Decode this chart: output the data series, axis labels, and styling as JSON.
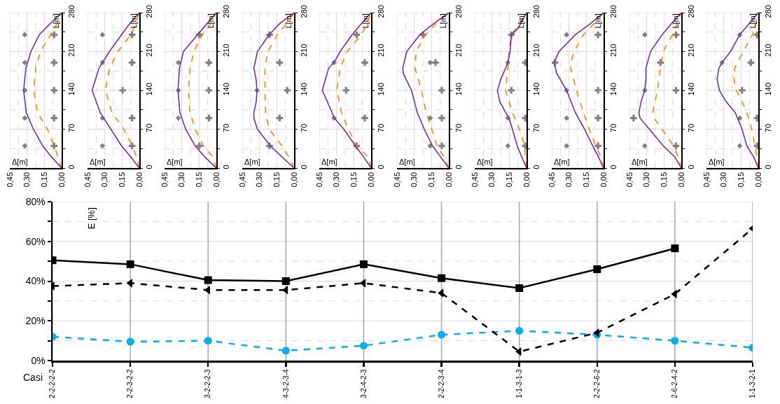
{
  "chart_data": [
    {
      "type": "line",
      "xlabel": "Δ[m]",
      "ylabel": "L[m]",
      "xlim": [
        0.45,
        0
      ],
      "ylim": [
        0,
        280
      ],
      "xticks": [
        {
          "value": 0.45,
          "label": "0,45"
        },
        {
          "value": 0.375,
          "label": null
        },
        {
          "value": 0.3,
          "label": "0,30"
        },
        {
          "value": 0.225,
          "label": null
        },
        {
          "value": 0.15,
          "label": "0,15"
        },
        {
          "value": 0.075,
          "label": null
        },
        {
          "value": 0,
          "label": "0,00"
        }
      ],
      "yticks": [
        0,
        {
          "value": 35,
          "label": null
        },
        70,
        {
          "value": 105,
          "label": null
        },
        140,
        {
          "value": 175,
          "label": null
        },
        210,
        {
          "value": 245,
          "label": null
        },
        280
      ],
      "grid": true,
      "series": [
        {
          "type": "line",
          "color": "#7030a0",
          "line_style": "solid",
          "marker": "none",
          "x": [
            0,
            0.088,
            0.164,
            0.245,
            0.307,
            0.33,
            0.31,
            0.266,
            0.194,
            0.1,
            0
          ],
          "values": [
            0,
            20,
            40,
            70,
            100,
            140,
            180,
            210,
            240,
            260,
            280
          ]
        },
        {
          "type": "line",
          "color": "#ff8000",
          "line_style": "dashed",
          "marker": "none",
          "x": [
            0,
            0.03,
            0.067,
            0.123,
            0.21,
            0.24,
            0.225,
            0.184,
            0.096,
            0.04,
            0
          ],
          "values": [
            0,
            20,
            40,
            70,
            100,
            140,
            180,
            210,
            240,
            260,
            280
          ]
        },
        {
          "type": "scatter",
          "color": "#808080",
          "marker": "diamond",
          "x": [
            0.32,
            0.32,
            0.32,
            0.32,
            0.32
          ],
          "values": [
            40,
            90,
            140,
            190,
            240
          ]
        },
        {
          "type": "scatter",
          "color": "#808080",
          "marker": "cross",
          "x": [
            0.065,
            0.065,
            0.065,
            0.065,
            0.065
          ],
          "values": [
            40,
            90,
            140,
            190,
            240
          ]
        }
      ]
    },
    {
      "type": "line",
      "xlabel": "Δ[m]",
      "ylabel": "L[m]",
      "xlim": [
        0.45,
        0
      ],
      "ylim": [
        0,
        280
      ],
      "xticks": [
        {
          "value": 0.45,
          "label": "0,45"
        },
        {
          "value": 0.375,
          "label": null
        },
        {
          "value": 0.3,
          "label": "0,30"
        },
        {
          "value": 0.225,
          "label": null
        },
        {
          "value": 0.15,
          "label": "0,15"
        },
        {
          "value": 0.075,
          "label": null
        },
        {
          "value": 0,
          "label": "0,00"
        }
      ],
      "yticks": [
        0,
        {
          "value": 35,
          "label": null
        },
        70,
        {
          "value": 105,
          "label": null
        },
        140,
        {
          "value": 175,
          "label": null
        },
        210,
        {
          "value": 245,
          "label": null
        },
        280
      ],
      "grid": true,
      "series": [
        {
          "type": "line",
          "color": "#7030a0",
          "line_style": "solid",
          "marker": "none",
          "x": [
            0,
            0.074,
            0.155,
            0.247,
            0.31,
            0.34,
            0.41,
            0.35,
            0.32,
            0.26,
            0.155,
            0.084,
            0
          ],
          "values": [
            0,
            20,
            40,
            70,
            90,
            100,
            140,
            180,
            190,
            210,
            240,
            260,
            280
          ]
        },
        {
          "type": "line",
          "color": "#ff8000",
          "line_style": "dashed",
          "marker": "none",
          "x": [
            0,
            0.023,
            0.063,
            0.135,
            0.237,
            0.295,
            0.258,
            0.186,
            0.074,
            0.033,
            0
          ],
          "values": [
            0,
            20,
            40,
            70,
            100,
            140,
            180,
            210,
            240,
            260,
            280
          ]
        },
        {
          "type": "scatter",
          "color": "#808080",
          "marker": "diamond",
          "x": [
            0.32,
            0.32,
            0.32,
            0.32
          ],
          "values": [
            40,
            90,
            190,
            240
          ]
        },
        {
          "type": "scatter",
          "color": "#808080",
          "marker": "cross",
          "x": [
            0.063,
            0.063,
            0.145,
            0.063,
            0.063
          ],
          "values": [
            40,
            90,
            140,
            190,
            240
          ]
        }
      ]
    },
    {
      "type": "line",
      "xlabel": "Δ[m]",
      "ylabel": "L[m]",
      "xlim": [
        0.45,
        0
      ],
      "ylim": [
        0,
        280
      ],
      "xticks": [
        {
          "value": 0.45,
          "label": "0,45"
        },
        {
          "value": 0.375,
          "label": null
        },
        {
          "value": 0.3,
          "label": "0,30"
        },
        {
          "value": 0.225,
          "label": null
        },
        {
          "value": 0.15,
          "label": "0,15"
        },
        {
          "value": 0.075,
          "label": null
        },
        {
          "value": 0,
          "label": "0,00"
        }
      ],
      "yticks": [
        0,
        {
          "value": 35,
          "label": null
        },
        70,
        {
          "value": 105,
          "label": null
        },
        140,
        {
          "value": 175,
          "label": null
        },
        210,
        {
          "value": 245,
          "label": null
        },
        280
      ],
      "grid": true,
      "series": [
        {
          "type": "line",
          "color": "#7030a0",
          "line_style": "solid",
          "marker": "none",
          "x": [
            0,
            0.1,
            0.184,
            0.266,
            0.317,
            0.333,
            0.32,
            0.286,
            0.164,
            0.082,
            0
          ],
          "values": [
            0,
            20,
            40,
            70,
            100,
            140,
            180,
            210,
            240,
            260,
            280
          ]
        },
        {
          "type": "line",
          "color": "#ff8000",
          "line_style": "dashed",
          "marker": "none",
          "x": [
            0,
            0.03,
            0.112,
            0.184,
            0.229,
            0.241,
            0.229,
            0.194,
            0.123,
            0.05,
            0
          ],
          "values": [
            0,
            20,
            40,
            70,
            100,
            140,
            180,
            210,
            240,
            260,
            280
          ]
        },
        {
          "type": "scatter",
          "color": "#808080",
          "marker": "diamond",
          "x": [
            0.33,
            0.33,
            0.33
          ],
          "values": [
            90,
            140,
            190
          ]
        },
        {
          "type": "scatter",
          "color": "#808080",
          "marker": "cross",
          "x": [
            0.147,
            0.065,
            0.065,
            0.065,
            0.147
          ],
          "values": [
            40,
            90,
            140,
            190,
            240
          ]
        }
      ]
    },
    {
      "type": "line",
      "xlabel": "Δ[m]",
      "ylabel": "L[m]",
      "xlim": [
        0.45,
        0
      ],
      "ylim": [
        0,
        280
      ],
      "xticks": [
        {
          "value": 0.45,
          "label": "0,45"
        },
        {
          "value": 0.375,
          "label": null
        },
        {
          "value": 0.3,
          "label": "0,30"
        },
        {
          "value": 0.225,
          "label": null
        },
        {
          "value": 0.15,
          "label": "0,15"
        },
        {
          "value": 0.075,
          "label": null
        },
        {
          "value": 0,
          "label": "0,00"
        }
      ],
      "yticks": [
        0,
        {
          "value": 35,
          "label": null
        },
        70,
        {
          "value": 105,
          "label": null
        },
        140,
        {
          "value": 175,
          "label": null
        },
        210,
        {
          "value": 245,
          "label": null
        },
        280
      ],
      "grid": true,
      "series": [
        {
          "type": "line",
          "color": "#7030a0",
          "line_style": "solid",
          "marker": "none",
          "x": [
            0,
            0.105,
            0.207,
            0.318,
            0.349,
            0.349,
            0.328,
            0.322,
            0.33,
            0.349,
            0.318,
            0.217,
            0.126,
            0
          ],
          "values": [
            0,
            20,
            40,
            70,
            90,
            100,
            120,
            140,
            160,
            180,
            210,
            240,
            260,
            280
          ]
        },
        {
          "type": "line",
          "color": "#ff8000",
          "line_style": "dashed",
          "marker": "none",
          "x": [
            0,
            0.045,
            0.105,
            0.217,
            0.247,
            0.253,
            0.253,
            0.227,
            0.146,
            0.065,
            0
          ],
          "values": [
            0,
            20,
            40,
            70,
            100,
            140,
            180,
            210,
            240,
            260,
            280
          ]
        },
        {
          "type": "scatter",
          "color": "#808080",
          "marker": "diamond",
          "x": [
            0.322
          ],
          "values": [
            140
          ]
        },
        {
          "type": "scatter",
          "color": "#808080",
          "marker": "cross",
          "x": [
            0.213,
            0.126,
            0.059,
            0.126,
            0.213
          ],
          "values": [
            40,
            90,
            140,
            190,
            240
          ]
        }
      ]
    },
    {
      "type": "line",
      "xlabel": "Δ[m]",
      "ylabel": "L[m]",
      "xlim": [
        0.45,
        0
      ],
      "ylim": [
        0,
        280
      ],
      "xticks": [
        {
          "value": 0.45,
          "label": "0,45"
        },
        {
          "value": 0.375,
          "label": null
        },
        {
          "value": 0.3,
          "label": "0,30"
        },
        {
          "value": 0.225,
          "label": null
        },
        {
          "value": 0.15,
          "label": "0,15"
        },
        {
          "value": 0.075,
          "label": null
        },
        {
          "value": 0,
          "label": "0,00"
        }
      ],
      "yticks": [
        0,
        {
          "value": 35,
          "label": null
        },
        70,
        {
          "value": 105,
          "label": null
        },
        140,
        {
          "value": 175,
          "label": null
        },
        210,
        {
          "value": 245,
          "label": null
        },
        280
      ],
      "grid": true,
      "series": [
        {
          "type": "line",
          "color": "#7030a0",
          "line_style": "solid",
          "marker": "none",
          "x": [
            0,
            0.065,
            0.136,
            0.237,
            0.318,
            0.339,
            0.424,
            0.369,
            0.322,
            0.268,
            0.166,
            0.085,
            0
          ],
          "values": [
            0,
            20,
            40,
            70,
            90,
            100,
            140,
            180,
            190,
            210,
            240,
            260,
            280
          ]
        },
        {
          "type": "line",
          "color": "#ff8000",
          "line_style": "dashed",
          "marker": "none",
          "x": [
            0,
            0.024,
            0.126,
            0.197,
            0.257,
            0.298,
            0.268,
            0.207,
            0.085,
            0.034,
            0
          ],
          "values": [
            0,
            20,
            40,
            70,
            100,
            140,
            180,
            210,
            240,
            260,
            280
          ]
        },
        {
          "type": "scatter",
          "color": "#808080",
          "marker": "diamond",
          "x": [
            0.322,
            0.322
          ],
          "values": [
            90,
            190
          ]
        },
        {
          "type": "scatter",
          "color": "#808080",
          "marker": "cross",
          "x": [
            0.126,
            0.055,
            0.217,
            0.055,
            0.126
          ],
          "values": [
            40,
            90,
            140,
            190,
            240
          ]
        }
      ]
    },
    {
      "type": "line",
      "xlabel": "Δ[m]",
      "ylabel": "L[m]",
      "xlim": [
        0.45,
        0
      ],
      "ylim": [
        0,
        280
      ],
      "xticks": [
        {
          "value": 0.45,
          "label": "0,45"
        },
        {
          "value": 0.375,
          "label": null
        },
        {
          "value": 0.3,
          "label": "0,30"
        },
        {
          "value": 0.225,
          "label": null
        },
        {
          "value": 0.15,
          "label": "0,15"
        },
        {
          "value": 0.075,
          "label": null
        },
        {
          "value": 0,
          "label": "0,00"
        }
      ],
      "yticks": [
        0,
        {
          "value": 35,
          "label": null
        },
        70,
        {
          "value": 105,
          "label": null
        },
        140,
        {
          "value": 175,
          "label": null
        },
        210,
        {
          "value": 245,
          "label": null
        },
        280
      ],
      "grid": true,
      "series": [
        {
          "type": "line",
          "color": "#7030a0",
          "line_style": "solid",
          "marker": "none",
          "x": [
            0,
            0.071,
            0.142,
            0.213,
            0.274,
            0.324,
            0.395,
            0.4,
            0.365,
            0.253,
            0.132,
            0
          ],
          "values": [
            0,
            20,
            40,
            70,
            100,
            140,
            170,
            180,
            210,
            240,
            260,
            280
          ]
        },
        {
          "type": "line",
          "color": "#ff8000",
          "line_style": "dashed",
          "marker": "none",
          "x": [
            0,
            0.041,
            0.101,
            0.148,
            0.197,
            0.237,
            0.294,
            0.284,
            0.203,
            0.111,
            0
          ],
          "values": [
            0,
            20,
            40,
            70,
            100,
            140,
            180,
            210,
            240,
            260,
            280
          ]
        },
        {
          "type": "scatter",
          "color": "#808080",
          "marker": "diamond",
          "x": [
            0.162,
            0.162,
            0.162
          ],
          "values": [
            40,
            90,
            190
          ]
        },
        {
          "type": "scatter",
          "color": "#808080",
          "marker": "cross",
          "x": [
            0.061,
            0.061,
            0.061,
            0.116,
            0.223
          ],
          "values": [
            40,
            90,
            140,
            190,
            240
          ]
        }
      ]
    },
    {
      "type": "line",
      "xlabel": "Δ[m]",
      "ylabel": "L[m]",
      "xlim": [
        0.45,
        0
      ],
      "ylim": [
        0,
        280
      ],
      "xticks": [
        {
          "value": 0.45,
          "label": "0,45"
        },
        {
          "value": 0.375,
          "label": null
        },
        {
          "value": 0.3,
          "label": "0,30"
        },
        {
          "value": 0.225,
          "label": null
        },
        {
          "value": 0.15,
          "label": "0,15"
        },
        {
          "value": 0.075,
          "label": null
        },
        {
          "value": 0,
          "label": "0,00"
        }
      ],
      "yticks": [
        0,
        {
          "value": 35,
          "label": null
        },
        70,
        {
          "value": 105,
          "label": null
        },
        140,
        {
          "value": 175,
          "label": null
        },
        210,
        {
          "value": 245,
          "label": null
        },
        280
      ],
      "grid": true,
      "series": [
        {
          "type": "line",
          "color": "#7030a0",
          "line_style": "solid",
          "marker": "none",
          "x": [
            0,
            0.041,
            0.081,
            0.122,
            0.152,
            0.182,
            0.233,
            0.253,
            0.223,
            0.182,
            0.162,
            0.142,
            0.132,
            0.081,
            0.051,
            0
          ],
          "values": [
            0,
            20,
            40,
            70,
            90,
            100,
            120,
            140,
            160,
            180,
            190,
            210,
            240,
            250,
            260,
            280
          ]
        },
        {
          "type": "line",
          "color": "#ff8000",
          "line_style": "dashed",
          "marker": "none",
          "x": [
            0,
            0.01,
            0.016,
            0.061,
            0.122,
            0.182,
            0.162,
            0.152,
            0.132,
            0.061,
            0
          ],
          "values": [
            0,
            20,
            40,
            70,
            100,
            140,
            180,
            210,
            240,
            260,
            280
          ]
        },
        {
          "type": "scatter",
          "color": "#808080",
          "marker": "diamond",
          "x": [
            0.162,
            0.162,
            0.162
          ],
          "values": [
            40,
            90,
            190
          ]
        },
        {
          "type": "scatter",
          "color": "#808080",
          "marker": "cross",
          "x": [
            0.01,
            0.01,
            0.132,
            0.01,
            0.132
          ],
          "values": [
            40,
            90,
            140,
            190,
            240
          ]
        }
      ]
    },
    {
      "type": "line",
      "xlabel": "Δ[m]",
      "ylabel": "L[m]",
      "xlim": [
        0.45,
        0
      ],
      "ylim": [
        0,
        280
      ],
      "xticks": [
        {
          "value": 0.45,
          "label": "0,45"
        },
        {
          "value": 0.375,
          "label": null
        },
        {
          "value": 0.3,
          "label": "0,30"
        },
        {
          "value": 0.225,
          "label": null
        },
        {
          "value": 0.15,
          "label": "0,15"
        },
        {
          "value": 0.075,
          "label": null
        },
        {
          "value": 0,
          "label": "0,00"
        }
      ],
      "yticks": [
        0,
        {
          "value": 35,
          "label": null
        },
        70,
        {
          "value": 105,
          "label": null
        },
        140,
        {
          "value": 175,
          "label": null
        },
        210,
        {
          "value": 245,
          "label": null
        },
        280
      ],
      "grid": true,
      "series": [
        {
          "type": "line",
          "color": "#7030a0",
          "line_style": "solid",
          "marker": "none",
          "x": [
            0,
            0.044,
            0.094,
            0.165,
            0.245,
            0.321,
            0.406,
            0.43,
            0.386,
            0.245,
            0.115,
            0
          ],
          "values": [
            0,
            20,
            40,
            70,
            100,
            140,
            170,
            190,
            210,
            240,
            260,
            280
          ]
        },
        {
          "type": "line",
          "color": "#ff8000",
          "line_style": "dashed",
          "marker": "none",
          "x": [
            0,
            0.024,
            0.068,
            0.125,
            0.175,
            0.235,
            0.285,
            0.285,
            0.255,
            0.175,
            0.084,
            0
          ],
          "values": [
            0,
            20,
            40,
            70,
            100,
            140,
            180,
            190,
            210,
            240,
            260,
            280
          ]
        },
        {
          "type": "scatter",
          "color": "#808080",
          "marker": "diamond",
          "x": [
            0.321,
            0.321,
            0.321,
            0.321
          ],
          "values": [
            40,
            90,
            140,
            240
          ]
        },
        {
          "type": "scatter",
          "color": "#808080",
          "marker": "cross",
          "x": [
            0.048,
            0.048,
            0.048,
            0.422,
            0.048
          ],
          "values": [
            40,
            90,
            140,
            190,
            240
          ]
        }
      ]
    },
    {
      "type": "line",
      "xlabel": "Δ[m]",
      "ylabel": "L[m]",
      "xlim": [
        0.45,
        0
      ],
      "ylim": [
        0,
        280
      ],
      "xticks": [
        {
          "value": 0.45,
          "label": "0,45"
        },
        {
          "value": 0.375,
          "label": null
        },
        {
          "value": 0.3,
          "label": "0,30"
        },
        {
          "value": 0.225,
          "label": null
        },
        {
          "value": 0.15,
          "label": "0,15"
        },
        {
          "value": 0.075,
          "label": null
        },
        {
          "value": 0,
          "label": "0,00"
        }
      ],
      "yticks": [
        0,
        {
          "value": 35,
          "label": null
        },
        70,
        {
          "value": 105,
          "label": null
        },
        140,
        {
          "value": 175,
          "label": null
        },
        210,
        {
          "value": 245,
          "label": null
        },
        280
      ],
      "grid": true,
      "series": [
        {
          "type": "line",
          "color": "#7030a0",
          "line_style": "solid",
          "marker": "none",
          "x": [
            0,
            0.056,
            0.157,
            0.277,
            0.358,
            0.368,
            0.348,
            0.317,
            0.307,
            0.307,
            0.267,
            0.167,
            0.086,
            0
          ],
          "values": [
            0,
            20,
            40,
            70,
            90,
            100,
            120,
            140,
            160,
            180,
            210,
            240,
            260,
            280
          ]
        },
        {
          "type": "line",
          "color": "#ff8000",
          "line_style": "dashed",
          "marker": "none",
          "x": [
            0,
            0.026,
            0.066,
            0.167,
            0.237,
            0.247,
            0.207,
            0.181,
            0.157,
            0.076,
            0.036,
            0
          ],
          "values": [
            0,
            20,
            40,
            70,
            90,
            100,
            140,
            180,
            210,
            240,
            260,
            280
          ]
        },
        {
          "type": "scatter",
          "color": "#808080",
          "marker": "diamond",
          "x": [
            0.317,
            0.317,
            0.317
          ],
          "values": [
            40,
            140,
            240
          ]
        },
        {
          "type": "scatter",
          "color": "#808080",
          "marker": "cross",
          "x": [
            0.046,
            0.414,
            0.046,
            0.181,
            0.046
          ],
          "values": [
            40,
            90,
            140,
            190,
            240
          ]
        }
      ]
    },
    {
      "type": "line",
      "xlabel": "Δ[m]",
      "ylabel": "L[m]",
      "xlim": [
        0.45,
        0
      ],
      "ylim": [
        0,
        280
      ],
      "xticks": [
        {
          "value": 0.45,
          "label": "0,45"
        },
        {
          "value": 0.375,
          "label": null
        },
        {
          "value": 0.3,
          "label": "0,30"
        },
        {
          "value": 0.225,
          "label": null
        },
        {
          "value": 0.15,
          "label": "0,15"
        },
        {
          "value": 0.075,
          "label": null
        },
        {
          "value": 0,
          "label": "0,00"
        }
      ],
      "yticks": [
        0,
        {
          "value": 35,
          "label": null
        },
        70,
        {
          "value": 105,
          "label": null
        },
        140,
        {
          "value": 175,
          "label": null
        },
        210,
        {
          "value": 245,
          "label": null
        },
        280
      ],
      "grid": true,
      "series": [
        {
          "type": "line",
          "color": "#7030a0",
          "line_style": "solid",
          "marker": "none",
          "x": [
            0,
            0.04,
            0.1,
            0.141,
            0.201,
            0.281,
            0.338,
            0.358,
            0.342,
            0.315,
            0.241,
            0.161,
            0.08,
            0
          ],
          "values": [
            0,
            20,
            40,
            70,
            100,
            120,
            140,
            160,
            180,
            190,
            210,
            240,
            260,
            280
          ]
        },
        {
          "type": "line",
          "color": "#ff8000",
          "line_style": "dashed",
          "marker": "none",
          "x": [
            0,
            0.01,
            0.03,
            0.056,
            0.1,
            0.141,
            0.191,
            0.211,
            0.205,
            0.131,
            0.05,
            0.02,
            0
          ],
          "values": [
            0,
            20,
            40,
            70,
            100,
            120,
            140,
            160,
            180,
            210,
            240,
            260,
            280
          ]
        },
        {
          "type": "scatter",
          "color": "#808080",
          "marker": "diamond",
          "x": [
            0.161,
            0.161,
            0.315,
            0.161
          ],
          "values": [
            40,
            90,
            190,
            240
          ]
        },
        {
          "type": "scatter",
          "color": "#808080",
          "marker": "cross",
          "x": [
            0.01,
            0.01,
            0.141,
            0.064,
            0.01
          ],
          "values": [
            40,
            90,
            140,
            190,
            240
          ]
        }
      ]
    },
    {
      "type": "line",
      "xlabel": "Casi",
      "ylabel": "E [%]",
      "categories": [
        "2-2-2-2-2",
        "2-2-3-2-2",
        "3-2-2-2-3",
        "4-3-2-3-4",
        "3-2-4-2-3",
        "2-2-2-3-4",
        "1-1-3-1-3",
        "2-2-2-6-2",
        "2-6-2-4-2",
        "1-1-3-2-1"
      ],
      "ylim": [
        0,
        80
      ],
      "yticks": [
        {
          "value": 0,
          "label": "0%"
        },
        {
          "value": 10,
          "label": null
        },
        {
          "value": 20,
          "label": "20%"
        },
        {
          "value": 30,
          "label": null
        },
        {
          "value": 40,
          "label": "40%"
        },
        {
          "value": 50,
          "label": null
        },
        {
          "value": 60,
          "label": "60%"
        },
        {
          "value": 70,
          "label": null
        },
        {
          "value": 80,
          "label": "80%"
        }
      ],
      "grid": true,
      "series": [
        {
          "type": "line",
          "color": "#000000",
          "line_style": "solid",
          "marker": "square",
          "values": [
            50.5,
            48.5,
            40.5,
            40,
            48.5,
            41.5,
            36.5,
            46,
            56.5,
            null
          ]
        },
        {
          "type": "line",
          "color": "#000000",
          "line_style": "dashed",
          "marker": "triangle",
          "values": [
            37.5,
            39,
            35.5,
            35.5,
            39,
            34,
            4.5,
            14,
            33.5,
            66.5
          ]
        },
        {
          "type": "line",
          "color": "#00b0f0",
          "line_style": "dashed",
          "marker": "circle",
          "values": [
            12,
            9.5,
            10,
            5,
            7.5,
            13,
            15,
            13,
            10,
            6.5
          ]
        }
      ]
    }
  ]
}
